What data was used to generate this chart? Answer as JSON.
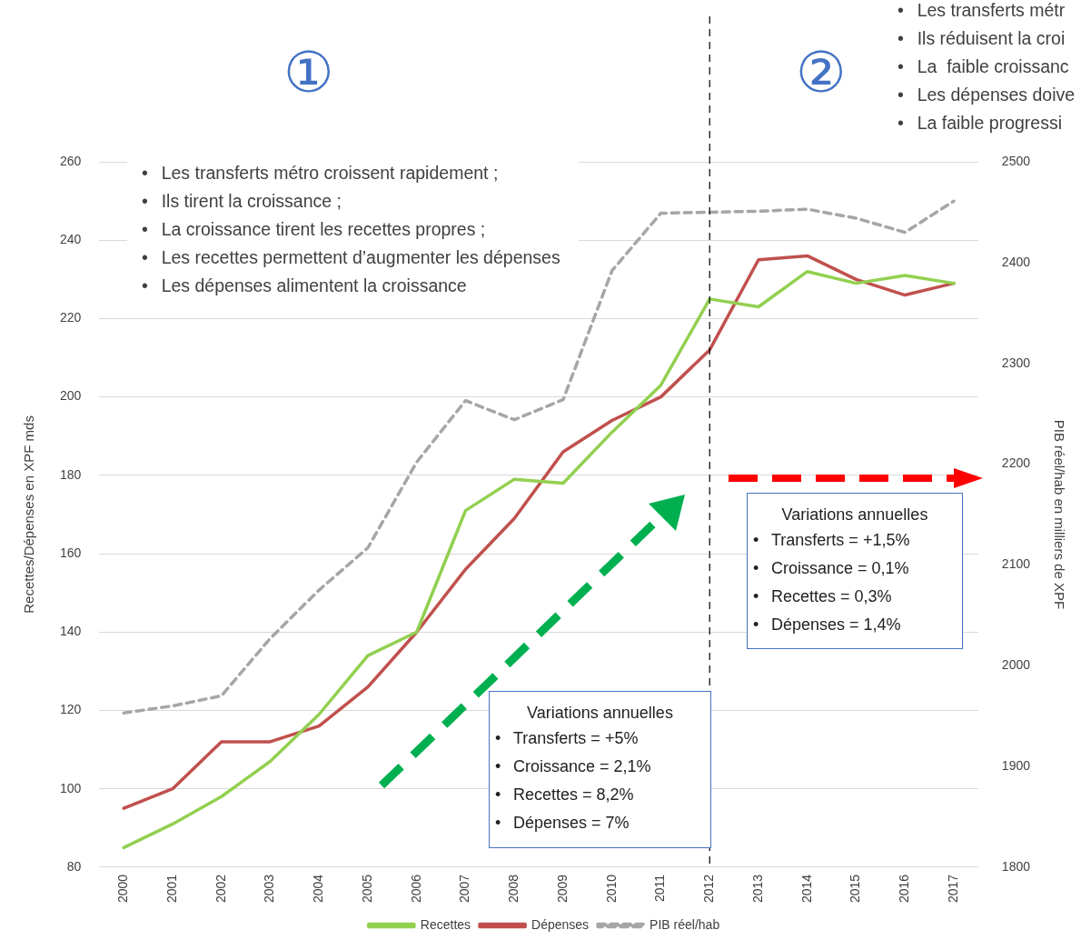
{
  "chart_data": {
    "type": "line",
    "categories": [
      "2000",
      "2001",
      "2002",
      "2003",
      "2004",
      "2005",
      "2006",
      "2007",
      "2008",
      "2009",
      "2010",
      "2011",
      "2012",
      "2013",
      "2014",
      "2015",
      "2016",
      "2017"
    ],
    "series": [
      {
        "name": "Recettes",
        "color": "#92d050",
        "values": [
          85,
          91,
          98,
          107,
          119,
          134,
          140,
          171,
          179,
          178,
          191,
          203,
          225,
          223,
          232,
          229,
          231,
          229
        ]
      },
      {
        "name": "Dépenses",
        "color": "#c0504d",
        "values": [
          95,
          100,
          112,
          112,
          116,
          126,
          140,
          156,
          169,
          186,
          194,
          200,
          212,
          235,
          236,
          230,
          226,
          229
        ]
      },
      {
        "name": "PIB réel/hab",
        "color": "#a6a6a6",
        "axis": "y2",
        "line_style": "dashed",
        "values": [
          1953,
          1960,
          1970,
          2027,
          2075,
          2117,
          2202,
          2263,
          2244,
          2264,
          2392,
          2449,
          2450,
          2451,
          2453,
          2444,
          2430,
          2461
        ]
      }
    ],
    "ylabel": "Recettes/Dépenses en XPF mds",
    "y2label": "PIB réel/hab en milliers de XPF",
    "ylim": [
      80,
      260
    ],
    "yticks": [
      80,
      100,
      120,
      140,
      160,
      180,
      200,
      220,
      240,
      260
    ],
    "y2lim": [
      1800,
      2500
    ],
    "y2ticks": [
      1800,
      1900,
      2000,
      2100,
      2200,
      2300,
      2400,
      2500
    ],
    "grid": "y",
    "legend": "bottom",
    "marker": "none",
    "line_style": "solid",
    "ref_lines": [
      {
        "axis": "x",
        "value": "2012",
        "color": "#000000",
        "line_style": "dashed"
      }
    ],
    "annotations": [
      "①",
      "②",
      "•\tLes transferts métro croissent rapidement ;",
      "•\tIls tirent la croissance ;",
      "•\tLa croissance tirent les recettes propres ;",
      "•\tLes recettes permettent d’augmenter les dépenses",
      "•\tLes dépenses alimentent la croissance",
      "•\tLes transferts métr",
      "•\tIls réduisent la croi",
      "•\tLa  faible croissanc",
      "•\tLes dépenses doive",
      "•\tLa faible progressi",
      "Variations annuelles",
      "•\tTransferts = +1,5%",
      "•\tCroissance = 0,1%",
      "•\tRecettes = 0,3%",
      "•\tDépenses = 1,4%",
      "Variations annuelles",
      "•\tTransferts = +5%",
      "•\tCroissance = 2,1%",
      "•\tRecettes = 8,2%",
      "•\tDépenses = 7%"
    ]
  }
}
